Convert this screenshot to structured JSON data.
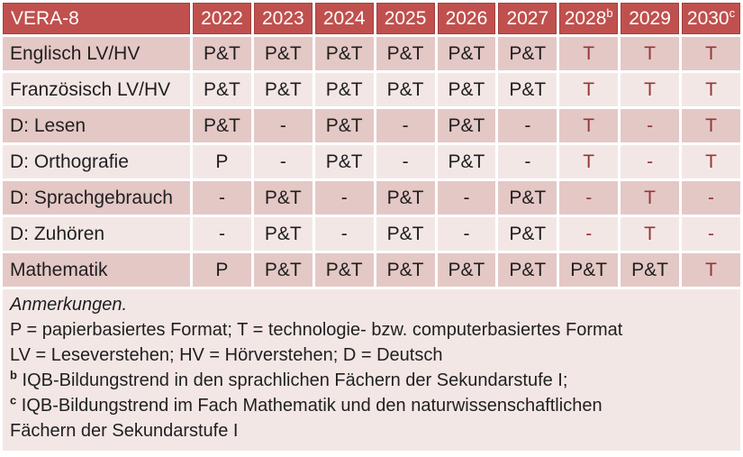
{
  "colors": {
    "header_bg": "#C0504D",
    "header_border": "#A3413E",
    "header_text": "#FFFFFF",
    "band_dark": "#E4C8C6",
    "band_light": "#F3E7E6",
    "body_text": "#1F1F1F",
    "tech_red": "#963634"
  },
  "table": {
    "columns": [
      {
        "label": "VERA-8",
        "sup": ""
      },
      {
        "label": "2022",
        "sup": ""
      },
      {
        "label": "2023",
        "sup": ""
      },
      {
        "label": "2024",
        "sup": ""
      },
      {
        "label": "2025",
        "sup": ""
      },
      {
        "label": "2026",
        "sup": ""
      },
      {
        "label": "2027",
        "sup": ""
      },
      {
        "label": "2028",
        "sup": "b"
      },
      {
        "label": "2029",
        "sup": ""
      },
      {
        "label": "2030",
        "sup": "c"
      }
    ],
    "rows": [
      {
        "label": "Englisch LV/HV",
        "cells": [
          {
            "v": "P&T",
            "red": false
          },
          {
            "v": "P&T",
            "red": false
          },
          {
            "v": "P&T",
            "red": false
          },
          {
            "v": "P&T",
            "red": false
          },
          {
            "v": "P&T",
            "red": false
          },
          {
            "v": "P&T",
            "red": false
          },
          {
            "v": "T",
            "red": true
          },
          {
            "v": "T",
            "red": true
          },
          {
            "v": "T",
            "red": true
          }
        ]
      },
      {
        "label": "Französisch LV/HV",
        "cells": [
          {
            "v": "P&T",
            "red": false
          },
          {
            "v": "P&T",
            "red": false
          },
          {
            "v": "P&T",
            "red": false
          },
          {
            "v": "P&T",
            "red": false
          },
          {
            "v": "P&T",
            "red": false
          },
          {
            "v": "P&T",
            "red": false
          },
          {
            "v": "T",
            "red": true
          },
          {
            "v": "T",
            "red": true
          },
          {
            "v": "T",
            "red": true
          }
        ]
      },
      {
        "label": "D: Lesen",
        "cells": [
          {
            "v": "P&T",
            "red": false
          },
          {
            "v": "-",
            "red": false
          },
          {
            "v": "P&T",
            "red": false
          },
          {
            "v": "-",
            "red": false
          },
          {
            "v": "P&T",
            "red": false
          },
          {
            "v": "-",
            "red": false
          },
          {
            "v": "T",
            "red": true
          },
          {
            "v": "-",
            "red": true
          },
          {
            "v": "T",
            "red": true
          }
        ]
      },
      {
        "label": "D: Orthografie",
        "cells": [
          {
            "v": "P",
            "red": false
          },
          {
            "v": "-",
            "red": false
          },
          {
            "v": "P&T",
            "red": false
          },
          {
            "v": "-",
            "red": false
          },
          {
            "v": "P&T",
            "red": false
          },
          {
            "v": "-",
            "red": false
          },
          {
            "v": "T",
            "red": true
          },
          {
            "v": "-",
            "red": true
          },
          {
            "v": "T",
            "red": true
          }
        ]
      },
      {
        "label": "D: Sprachgebrauch",
        "cells": [
          {
            "v": "-",
            "red": false
          },
          {
            "v": "P&T",
            "red": false
          },
          {
            "v": "-",
            "red": false
          },
          {
            "v": "P&T",
            "red": false
          },
          {
            "v": "-",
            "red": false
          },
          {
            "v": "P&T",
            "red": false
          },
          {
            "v": "-",
            "red": true
          },
          {
            "v": "T",
            "red": true
          },
          {
            "v": "-",
            "red": true
          }
        ]
      },
      {
        "label": "D: Zuhören",
        "cells": [
          {
            "v": "-",
            "red": false
          },
          {
            "v": "P&T",
            "red": false
          },
          {
            "v": "-",
            "red": false
          },
          {
            "v": "P&T",
            "red": false
          },
          {
            "v": "-",
            "red": false
          },
          {
            "v": "P&T",
            "red": false
          },
          {
            "v": "-",
            "red": true
          },
          {
            "v": "T",
            "red": true
          },
          {
            "v": "-",
            "red": true
          }
        ]
      },
      {
        "label": "Mathematik",
        "cells": [
          {
            "v": "P",
            "red": false
          },
          {
            "v": "P&T",
            "red": false
          },
          {
            "v": "P&T",
            "red": false
          },
          {
            "v": "P&T",
            "red": false
          },
          {
            "v": "P&T",
            "red": false
          },
          {
            "v": "P&T",
            "red": false
          },
          {
            "v": "P&T",
            "red": false
          },
          {
            "v": "P&T",
            "red": false
          },
          {
            "v": "T",
            "red": true
          }
        ]
      }
    ]
  },
  "notes": {
    "heading": "Anmerkungen.",
    "lines": [
      {
        "sup": "",
        "text": "P = papierbasiertes Format; T = technologie- bzw. computerbasiertes Format"
      },
      {
        "sup": "",
        "text": "LV = Leseverstehen; HV = Hörverstehen; D = Deutsch"
      },
      {
        "sup": "b",
        "text": "IQB-Bildungstrend in den sprachlichen Fächern der Sekundarstufe I;"
      },
      {
        "sup": "c",
        "text": "IQB-Bildungstrend im Fach Mathematik und den naturwissenschaftlichen Fächern der Sekundarstufe I"
      }
    ]
  }
}
